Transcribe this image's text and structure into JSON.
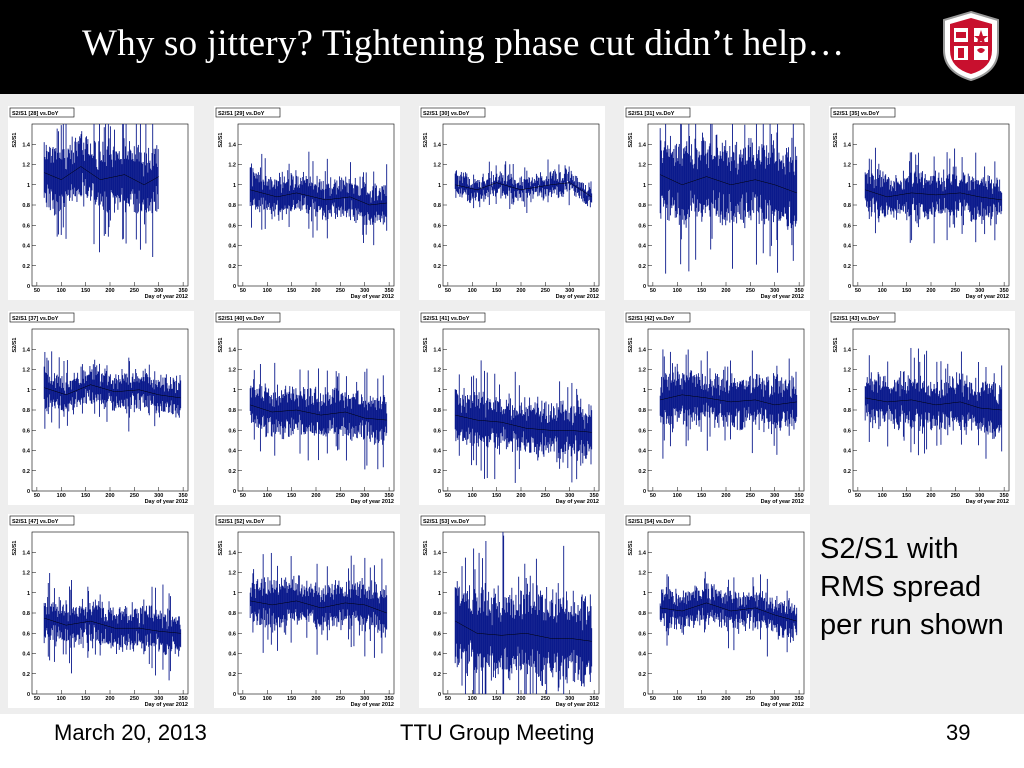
{
  "slide": {
    "title": "Why so jittery? Tightening phase cut didn’t help…",
    "side_note": "S2/S1 with RMS spread per run shown",
    "footer": {
      "date": "March 20, 2013",
      "center": "TTU Group Meeting",
      "page": "39"
    },
    "logo_icon": "ttu-shield-icon"
  },
  "colors": {
    "data": "#0b1a8c",
    "title_bg": "#000000",
    "panel_bg": "#ffffff"
  },
  "chart_data": [
    {
      "type": "scatter",
      "title": "S2/S1 [28] vs.DoY",
      "ylabel": "S2/S1",
      "xlabel": "Day of year 2012",
      "xlim": [
        40,
        360
      ],
      "ylim": [
        0,
        1.6
      ],
      "xticks": [
        50,
        100,
        150,
        200,
        250,
        300,
        350
      ],
      "yticks": [
        0,
        0.2,
        0.4,
        0.6,
        0.8,
        1,
        1.2,
        1.4
      ],
      "x_range": [
        65,
        300
      ],
      "mean": [
        [
          65,
          1.12
        ],
        [
          100,
          1.05
        ],
        [
          140,
          1.18
        ],
        [
          180,
          1.05
        ],
        [
          230,
          1.1
        ],
        [
          270,
          1.0
        ],
        [
          300,
          1.08
        ]
      ],
      "spread": 0.22
    },
    {
      "type": "scatter",
      "title": "S2/S1 [29] vs.DoY",
      "ylabel": "S2/S1",
      "xlabel": "Day of year 2012",
      "xlim": [
        40,
        360
      ],
      "ylim": [
        0,
        1.6
      ],
      "xticks": [
        50,
        100,
        150,
        200,
        250,
        300,
        350
      ],
      "yticks": [
        0,
        0.2,
        0.4,
        0.6,
        0.8,
        1,
        1.2,
        1.4
      ],
      "x_range": [
        65,
        345
      ],
      "mean": [
        [
          65,
          0.95
        ],
        [
          120,
          0.88
        ],
        [
          160,
          0.92
        ],
        [
          220,
          0.85
        ],
        [
          270,
          0.88
        ],
        [
          310,
          0.8
        ],
        [
          345,
          0.82
        ]
      ],
      "spread": 0.13
    },
    {
      "type": "scatter",
      "title": "S2/S1 [30] vs.DoY",
      "ylabel": "S2/S1",
      "xlabel": "Day of year 2012",
      "xlim": [
        40,
        360
      ],
      "ylim": [
        0,
        1.6
      ],
      "xticks": [
        50,
        100,
        150,
        200,
        250,
        300,
        350
      ],
      "yticks": [
        0,
        0.2,
        0.4,
        0.6,
        0.8,
        1,
        1.2,
        1.4
      ],
      "x_range": [
        65,
        345
      ],
      "mean": [
        [
          65,
          1.0
        ],
        [
          110,
          0.95
        ],
        [
          150,
          1.02
        ],
        [
          200,
          0.95
        ],
        [
          260,
          1.0
        ],
        [
          300,
          1.02
        ],
        [
          345,
          0.88
        ]
      ],
      "spread": 0.07
    },
    {
      "type": "scatter",
      "title": "S2/S1 [31] vs.DoY",
      "ylabel": "S2/S1",
      "xlabel": "Day of year 2012",
      "xlim": [
        40,
        360
      ],
      "ylim": [
        0,
        1.6
      ],
      "xticks": [
        50,
        100,
        150,
        200,
        250,
        300,
        350
      ],
      "yticks": [
        0,
        0.2,
        0.4,
        0.6,
        0.8,
        1,
        1.2,
        1.4
      ],
      "x_range": [
        65,
        345
      ],
      "mean": [
        [
          65,
          1.1
        ],
        [
          110,
          1.0
        ],
        [
          160,
          1.08
        ],
        [
          210,
          1.0
        ],
        [
          260,
          1.05
        ],
        [
          300,
          1.0
        ],
        [
          345,
          0.92
        ]
      ],
      "spread": 0.28
    },
    {
      "type": "scatter",
      "title": "S2/S1 [35] vs.DoY",
      "ylabel": "S2/S1",
      "xlabel": "Day of year 2012",
      "xlim": [
        40,
        360
      ],
      "ylim": [
        0,
        1.6
      ],
      "xticks": [
        50,
        100,
        150,
        200,
        250,
        300,
        350
      ],
      "yticks": [
        0,
        0.2,
        0.4,
        0.6,
        0.8,
        1,
        1.2,
        1.4
      ],
      "x_range": [
        65,
        345
      ],
      "mean": [
        [
          65,
          0.95
        ],
        [
          110,
          0.88
        ],
        [
          160,
          0.92
        ],
        [
          210,
          0.9
        ],
        [
          260,
          0.92
        ],
        [
          300,
          0.88
        ],
        [
          345,
          0.85
        ]
      ],
      "spread": 0.14
    },
    {
      "type": "scatter",
      "title": "S2/S1 [37] vs.DoY",
      "ylabel": "S2/S1",
      "xlabel": "Day of year 2012",
      "xlim": [
        40,
        360
      ],
      "ylim": [
        0,
        1.6
      ],
      "xticks": [
        50,
        100,
        150,
        200,
        250,
        300,
        350
      ],
      "yticks": [
        0,
        0.2,
        0.4,
        0.6,
        0.8,
        1,
        1.2,
        1.4
      ],
      "x_range": [
        65,
        345
      ],
      "mean": [
        [
          65,
          1.02
        ],
        [
          110,
          0.95
        ],
        [
          160,
          1.05
        ],
        [
          210,
          0.98
        ],
        [
          260,
          1.0
        ],
        [
          300,
          0.95
        ],
        [
          345,
          0.92
        ]
      ],
      "spread": 0.12
    },
    {
      "type": "scatter",
      "title": "S2/S1 [40] vs.DoY",
      "ylabel": "S2/S1",
      "xlabel": "Day of year 2012",
      "xlim": [
        40,
        360
      ],
      "ylim": [
        0,
        1.6
      ],
      "xticks": [
        50,
        100,
        150,
        200,
        250,
        300,
        350
      ],
      "yticks": [
        0,
        0.2,
        0.4,
        0.6,
        0.8,
        1,
        1.2,
        1.4
      ],
      "x_range": [
        65,
        345
      ],
      "mean": [
        [
          65,
          0.85
        ],
        [
          110,
          0.78
        ],
        [
          160,
          0.8
        ],
        [
          210,
          0.75
        ],
        [
          260,
          0.78
        ],
        [
          300,
          0.72
        ],
        [
          345,
          0.7
        ]
      ],
      "spread": 0.15
    },
    {
      "type": "scatter",
      "title": "S2/S1 [41] vs.DoY",
      "ylabel": "S2/S1",
      "xlabel": "Day of year 2012",
      "xlim": [
        40,
        360
      ],
      "ylim": [
        0,
        1.6
      ],
      "xticks": [
        50,
        100,
        150,
        200,
        250,
        300,
        350
      ],
      "yticks": [
        0,
        0.2,
        0.4,
        0.6,
        0.8,
        1,
        1.2,
        1.4
      ],
      "x_range": [
        65,
        345
      ],
      "mean": [
        [
          65,
          0.75
        ],
        [
          110,
          0.7
        ],
        [
          160,
          0.68
        ],
        [
          210,
          0.62
        ],
        [
          260,
          0.6
        ],
        [
          300,
          0.6
        ],
        [
          345,
          0.58
        ]
      ],
      "spread": 0.17
    },
    {
      "type": "scatter",
      "title": "S2/S1 [42] vs.DoY",
      "ylabel": "S2/S1",
      "xlabel": "Day of year 2012",
      "xlim": [
        40,
        360
      ],
      "ylim": [
        0,
        1.6
      ],
      "xticks": [
        50,
        100,
        150,
        200,
        250,
        300,
        350
      ],
      "yticks": [
        0,
        0.2,
        0.4,
        0.6,
        0.8,
        1,
        1.2,
        1.4
      ],
      "x_range": [
        65,
        345
      ],
      "mean": [
        [
          65,
          0.9
        ],
        [
          110,
          0.95
        ],
        [
          160,
          0.92
        ],
        [
          210,
          0.88
        ],
        [
          260,
          0.9
        ],
        [
          300,
          0.85
        ],
        [
          345,
          0.88
        ]
      ],
      "spread": 0.17
    },
    {
      "type": "scatter",
      "title": "S2/S1 [43] vs.DoY",
      "ylabel": "S2/S1",
      "xlabel": "Day of year 2012",
      "xlim": [
        40,
        360
      ],
      "ylim": [
        0,
        1.6
      ],
      "xticks": [
        50,
        100,
        150,
        200,
        250,
        300,
        350
      ],
      "yticks": [
        0,
        0.2,
        0.4,
        0.6,
        0.8,
        1,
        1.2,
        1.4
      ],
      "x_range": [
        65,
        345
      ],
      "mean": [
        [
          65,
          0.92
        ],
        [
          110,
          0.88
        ],
        [
          160,
          0.9
        ],
        [
          210,
          0.85
        ],
        [
          260,
          0.88
        ],
        [
          300,
          0.82
        ],
        [
          345,
          0.8
        ]
      ],
      "spread": 0.17
    },
    {
      "type": "scatter",
      "title": "S2/S1 [47] vs.DoY",
      "ylabel": "S2/S1",
      "xlabel": "Day of year 2012",
      "xlim": [
        40,
        360
      ],
      "ylim": [
        0,
        1.6
      ],
      "xticks": [
        50,
        100,
        150,
        200,
        250,
        300,
        350
      ],
      "yticks": [
        0,
        0.2,
        0.4,
        0.6,
        0.8,
        1,
        1.2,
        1.4
      ],
      "x_range": [
        65,
        345
      ],
      "mean": [
        [
          65,
          0.75
        ],
        [
          110,
          0.68
        ],
        [
          160,
          0.72
        ],
        [
          210,
          0.65
        ],
        [
          260,
          0.65
        ],
        [
          300,
          0.62
        ],
        [
          345,
          0.6
        ]
      ],
      "spread": 0.14
    },
    {
      "type": "scatter",
      "title": "S2/S1 [52] vs.DoY",
      "ylabel": "S2/S1",
      "xlabel": "Day of year 2012",
      "xlim": [
        40,
        360
      ],
      "ylim": [
        0,
        1.6
      ],
      "xticks": [
        50,
        100,
        150,
        200,
        250,
        300,
        350
      ],
      "yticks": [
        0,
        0.2,
        0.4,
        0.6,
        0.8,
        1,
        1.2,
        1.4
      ],
      "x_range": [
        65,
        345
      ],
      "mean": [
        [
          65,
          0.92
        ],
        [
          110,
          0.88
        ],
        [
          160,
          0.92
        ],
        [
          210,
          0.85
        ],
        [
          260,
          0.9
        ],
        [
          300,
          0.88
        ],
        [
          345,
          0.8
        ]
      ],
      "spread": 0.15
    },
    {
      "type": "scatter",
      "title": "S2/S1 [53] vs.DoY",
      "ylabel": "S2/S1",
      "xlabel": "Day of year 2012",
      "xlim": [
        40,
        360
      ],
      "ylim": [
        0,
        1.6
      ],
      "xticks": [
        50,
        100,
        150,
        200,
        250,
        300,
        350
      ],
      "yticks": [
        0,
        0.2,
        0.4,
        0.6,
        0.8,
        1,
        1.2,
        1.4
      ],
      "x_range": [
        65,
        345
      ],
      "mean": [
        [
          65,
          0.72
        ],
        [
          110,
          0.6
        ],
        [
          160,
          0.58
        ],
        [
          210,
          0.6
        ],
        [
          260,
          0.55
        ],
        [
          300,
          0.55
        ],
        [
          345,
          0.52
        ]
      ],
      "spread": 0.3
    },
    {
      "type": "scatter",
      "title": "S2/S1 [54] vs.DoY",
      "ylabel": "S2/S1",
      "xlabel": "Day of year 2012",
      "xlim": [
        40,
        360
      ],
      "ylim": [
        0,
        1.6
      ],
      "xticks": [
        50,
        100,
        150,
        200,
        250,
        300,
        350
      ],
      "yticks": [
        0,
        0.2,
        0.4,
        0.6,
        0.8,
        1,
        1.2,
        1.4
      ],
      "x_range": [
        65,
        345
      ],
      "mean": [
        [
          65,
          0.85
        ],
        [
          110,
          0.82
        ],
        [
          160,
          0.9
        ],
        [
          210,
          0.82
        ],
        [
          260,
          0.85
        ],
        [
          300,
          0.78
        ],
        [
          345,
          0.72
        ]
      ],
      "spread": 0.12
    }
  ]
}
